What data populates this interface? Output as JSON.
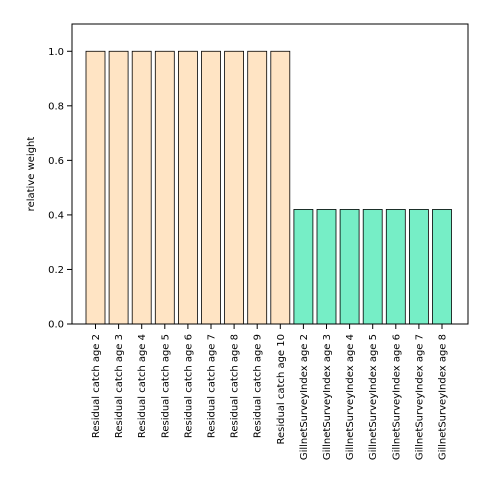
{
  "chart_data": {
    "type": "bar",
    "title": "",
    "xlabel": "",
    "ylabel": "relative weight",
    "ylim": [
      0,
      1.1
    ],
    "yticks": [
      0.0,
      0.2,
      0.4,
      0.6,
      0.8,
      1.0
    ],
    "ytick_labels": [
      "0.0",
      "0.2",
      "0.4",
      "0.6",
      "0.8",
      "1.0"
    ],
    "grid": false,
    "legend": "none",
    "categories": [
      "Residual catch age 2",
      "Residual catch age 3",
      "Residual catch age 4",
      "Residual catch age 5",
      "Residual catch age 6",
      "Residual catch age 7",
      "Residual catch age 8",
      "Residual catch age 9",
      "Residual catch age 10",
      "GillnetSurveyIndex age 2",
      "GillnetSurveyIndex age 3",
      "GillnetSurveyIndex age 4",
      "GillnetSurveyIndex age 5",
      "GillnetSurveyIndex age 6",
      "GillnetSurveyIndex age 7",
      "GillnetSurveyIndex age 8"
    ],
    "values": [
      1.0,
      1.0,
      1.0,
      1.0,
      1.0,
      1.0,
      1.0,
      1.0,
      1.0,
      0.42,
      0.42,
      0.42,
      0.42,
      0.42,
      0.42,
      0.42
    ],
    "group_colors": [
      "#ffe4c4",
      "#ffe4c4",
      "#ffe4c4",
      "#ffe4c4",
      "#ffe4c4",
      "#ffe4c4",
      "#ffe4c4",
      "#ffe4c4",
      "#ffe4c4",
      "#76eec6",
      "#76eec6",
      "#76eec6",
      "#76eec6",
      "#76eec6",
      "#76eec6",
      "#76eec6"
    ],
    "bar_edge_color": "#000000"
  }
}
